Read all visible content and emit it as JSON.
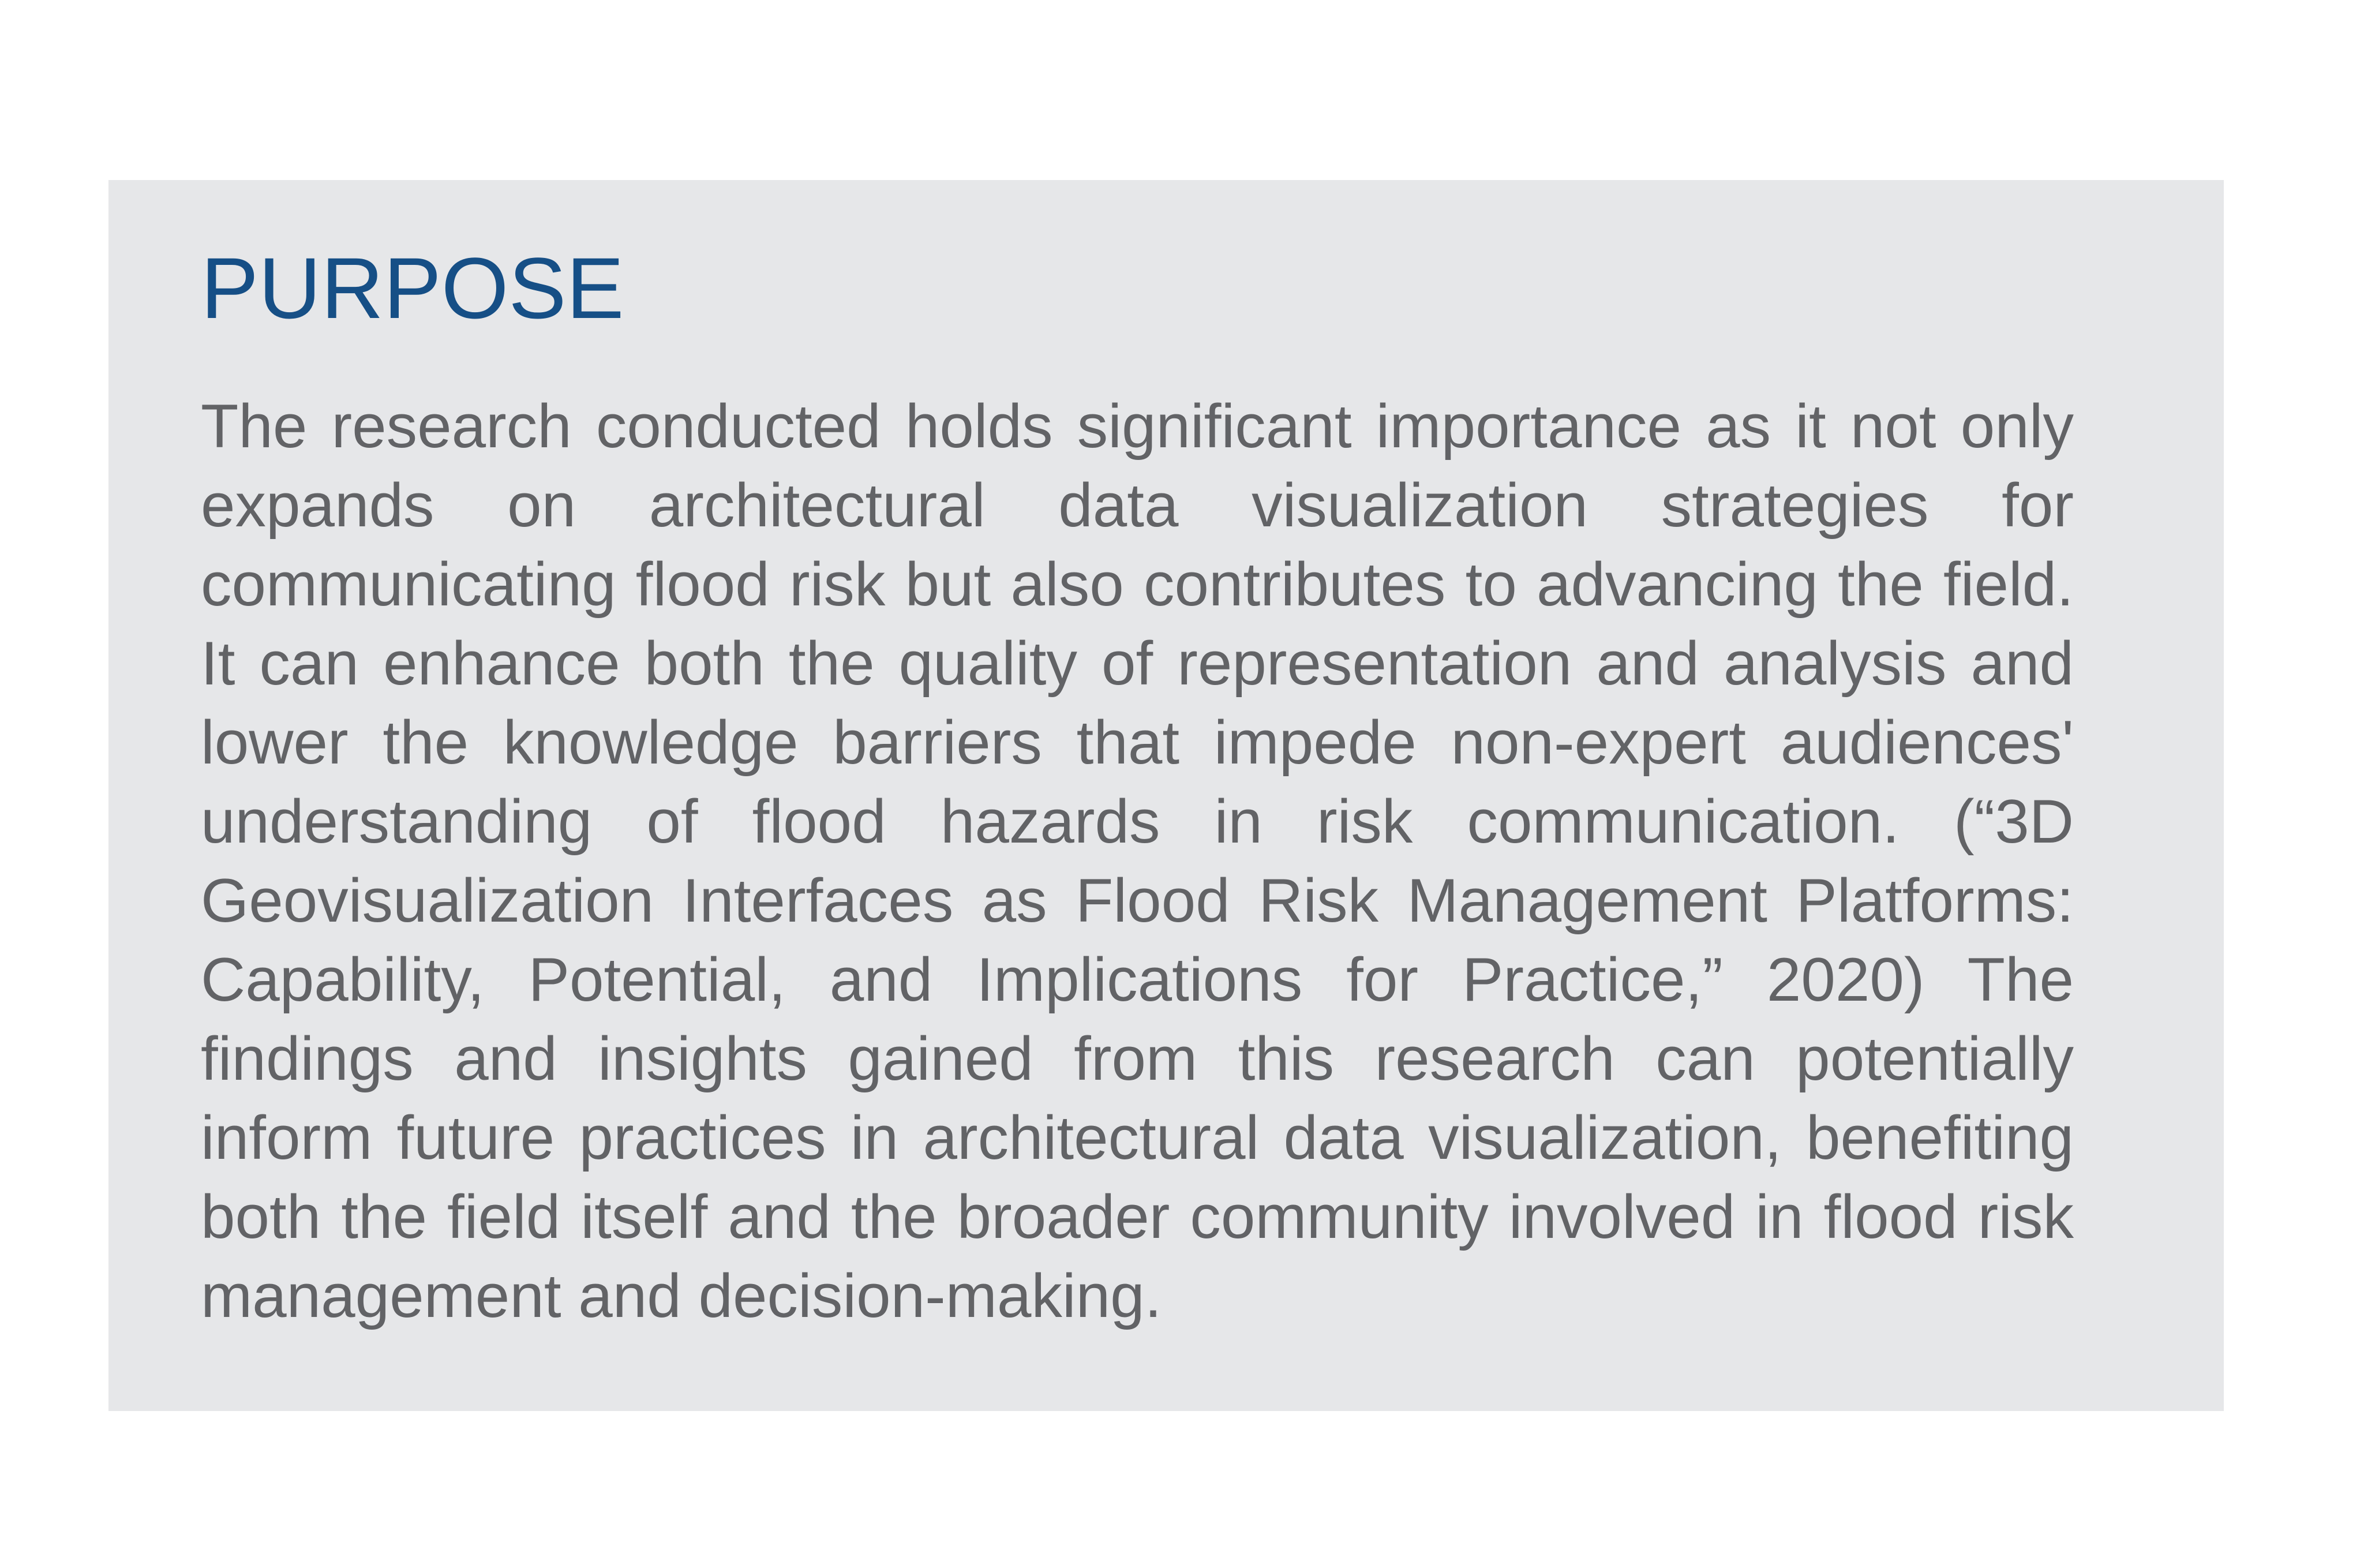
{
  "section": {
    "heading": "PURPOSE",
    "body": "The research conducted  holds significant importance as it not only expands on architectural data visualization strategies for communicating flood risk but also contributes to advancing the field. It can enhance both the quality of representation and analysis and lower the knowledge barriers that impede non-expert audiences' understanding of flood hazards in risk communication. (“3D Geovisualization Interfaces as Flood Risk Management Platforms: Capability, Potential, and Implications for Practice,” 2020) The findings and insights gained from this research can potentially inform future practices in architectural data visualization, benefiting both the field itself and the broader community involved in flood risk management and decision-making."
  },
  "colors": {
    "panel_background": "#e6e7e9",
    "heading": "#164f86",
    "body_text": "#626366",
    "page_background": "#ffffff"
  }
}
